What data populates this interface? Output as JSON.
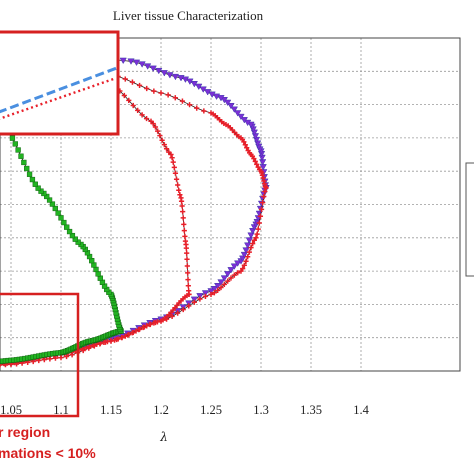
{
  "chart_data": {
    "type": "scatter",
    "title": "Liver tissue Characterization",
    "xlabel": "λ",
    "ylabel": "",
    "xlim": [
      1.0,
      1.4
    ],
    "ylim": [
      0,
      10
    ],
    "x_ticks": [
      "1.05",
      "1.1",
      "1.15",
      "1.2",
      "1.25",
      "1.3",
      "1.35",
      "1.4"
    ],
    "grid": true,
    "colors": {
      "purple": "#7b2fd6",
      "blue": "#3a3aa8",
      "red": "#e8202a",
      "green": "#22b422",
      "dark": "#3a1f1f",
      "inset_blue": "#4a8fe0",
      "inset_red": "#e8202a",
      "annot_red": "#d62020"
    },
    "series": [
      {
        "marker": "triangle-down",
        "color": "purple",
        "lambda_max": 1.305,
        "loading": [
          [
            1.0,
            0.1
          ],
          [
            1.05,
            0.22
          ],
          [
            1.1,
            0.5
          ],
          [
            1.15,
            0.95
          ],
          [
            1.2,
            1.55
          ],
          [
            1.25,
            2.4
          ],
          [
            1.28,
            3.3
          ],
          [
            1.295,
            4.4
          ],
          [
            1.305,
            5.5
          ]
        ],
        "unloading": [
          [
            1.305,
            5.5
          ],
          [
            1.3,
            6.6
          ],
          [
            1.29,
            7.4
          ],
          [
            1.26,
            8.2
          ],
          [
            1.22,
            8.8
          ],
          [
            1.17,
            9.3
          ],
          [
            1.1,
            9.6
          ],
          [
            1.05,
            9.75
          ],
          [
            1.0,
            9.85
          ]
        ]
      },
      {
        "marker": "cross",
        "color": "red",
        "lambda_max": 1.305,
        "loading": [
          [
            1.0,
            0.08
          ],
          [
            1.05,
            0.2
          ],
          [
            1.1,
            0.4
          ],
          [
            1.15,
            0.9
          ],
          [
            1.2,
            1.5
          ],
          [
            1.25,
            2.3
          ],
          [
            1.28,
            3.0
          ],
          [
            1.295,
            4.0
          ],
          [
            1.305,
            5.5
          ]
        ],
        "unloading": [
          [
            1.305,
            5.5
          ],
          [
            1.3,
            6.0
          ],
          [
            1.29,
            6.5
          ],
          [
            1.28,
            7.0
          ],
          [
            1.265,
            7.4
          ],
          [
            1.25,
            7.75
          ],
          [
            1.2,
            8.35
          ],
          [
            1.15,
            8.9
          ],
          [
            1.1,
            9.4
          ],
          [
            1.05,
            9.7
          ],
          [
            1.0,
            9.85
          ]
        ]
      },
      {
        "marker": "cross",
        "color": "red",
        "lambda_max": 1.228,
        "loading": [
          [
            1.0,
            0.1
          ],
          [
            1.05,
            0.24
          ],
          [
            1.1,
            0.5
          ],
          [
            1.15,
            0.9
          ],
          [
            1.2,
            1.5
          ],
          [
            1.228,
            2.3
          ]
        ],
        "unloading": [
          [
            1.228,
            2.3
          ],
          [
            1.225,
            3.8
          ],
          [
            1.22,
            5.2
          ],
          [
            1.21,
            6.5
          ],
          [
            1.19,
            7.5
          ],
          [
            1.15,
            8.6
          ],
          [
            1.1,
            9.3
          ],
          [
            1.05,
            9.7
          ],
          [
            1.0,
            9.85
          ]
        ]
      },
      {
        "marker": "square",
        "color": "green",
        "lambda_max": 1.16,
        "loading": [
          [
            1.0,
            0.12
          ],
          [
            1.05,
            0.32
          ],
          [
            1.1,
            0.55
          ],
          [
            1.13,
            0.9
          ],
          [
            1.16,
            1.2
          ]
        ],
        "unloading": [
          [
            1.16,
            1.2
          ],
          [
            1.15,
            2.3
          ],
          [
            1.12,
            3.8
          ],
          [
            1.08,
            5.4
          ],
          [
            1.04,
            7.5
          ],
          [
            1.0,
            9.8
          ]
        ]
      }
    ],
    "inset_lines": [
      {
        "style": "dashed",
        "color": "inset_blue",
        "points": [
          [
            0.0,
            0.8
          ],
          [
            1.0,
            0.35
          ]
        ]
      },
      {
        "style": "dotted",
        "color": "inset_red",
        "points": [
          [
            0.0,
            0.87
          ],
          [
            1.0,
            0.45
          ]
        ]
      }
    ],
    "annotation": [
      "r region",
      "mations < 10%"
    ]
  }
}
